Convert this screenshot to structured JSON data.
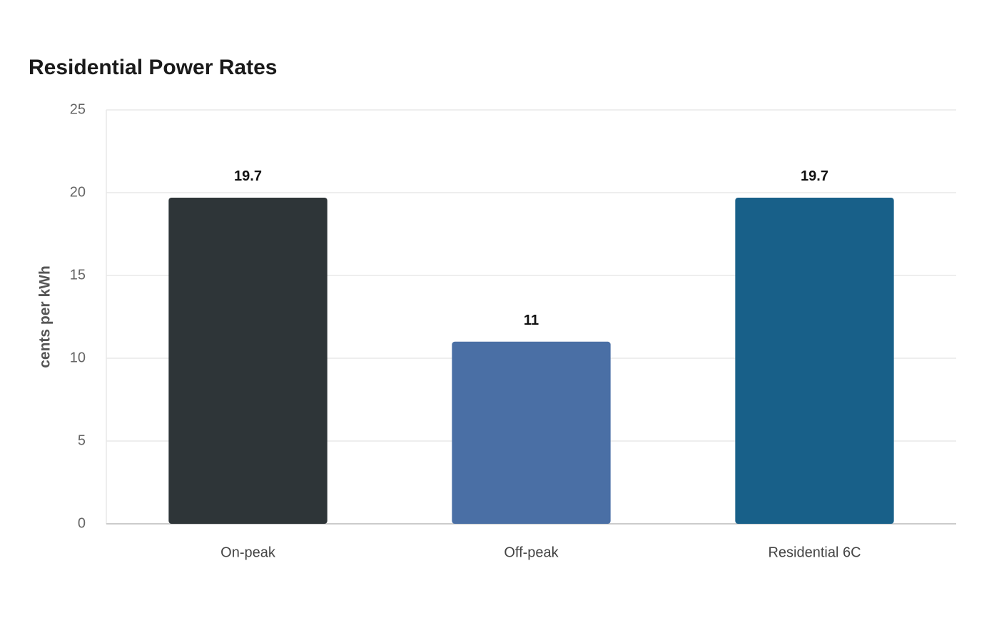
{
  "chart_data": {
    "type": "bar",
    "title": "Residential Power Rates",
    "y_label": "cents per kWh",
    "categories": [
      "On-peak",
      "Off-peak",
      "Residential 6C"
    ],
    "values": [
      19.7,
      11,
      19.7
    ],
    "colors": [
      "#2e3538",
      "#4a6fa5",
      "#186089"
    ],
    "ylim": [
      0,
      25
    ],
    "yticks": [
      0,
      5,
      10,
      15,
      20,
      25
    ],
    "grid": true
  }
}
